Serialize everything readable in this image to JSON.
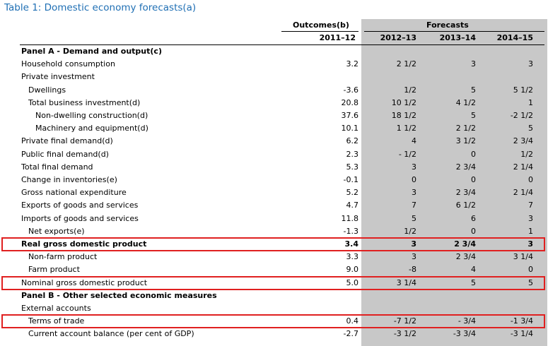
{
  "title": "Table 1: Domestic economy forecasts(a)",
  "header": {
    "outcomes": "Outcomes(b)",
    "forecasts": "Forecasts",
    "years": [
      "2011–12",
      "2012–13",
      "2013–14",
      "2014–15"
    ]
  },
  "rows": [
    {
      "label": "Panel A - Demand and output(c)",
      "indent": 0,
      "bold": true,
      "values": [
        "",
        "",
        "",
        ""
      ]
    },
    {
      "label": "Household consumption",
      "indent": 0,
      "values": [
        "3.2",
        "2 1/2",
        "3",
        "3"
      ]
    },
    {
      "label": "Private investment",
      "indent": 0,
      "values": [
        "",
        "",
        "",
        ""
      ]
    },
    {
      "label": "Dwellings",
      "indent": 1,
      "values": [
        "-3.6",
        "1/2",
        "5",
        "5 1/2"
      ]
    },
    {
      "label": "Total business investment(d)",
      "indent": 1,
      "values": [
        "20.8",
        "10 1/2",
        "4 1/2",
        "1"
      ]
    },
    {
      "label": "Non-dwelling construction(d)",
      "indent": 2,
      "values": [
        "37.6",
        "18 1/2",
        "5",
        "-2 1/2"
      ]
    },
    {
      "label": "Machinery and equipment(d)",
      "indent": 2,
      "values": [
        "10.1",
        "1 1/2",
        "2 1/2",
        "5"
      ]
    },
    {
      "label": "Private final demand(d)",
      "indent": 0,
      "values": [
        "6.2",
        "4",
        "3 1/2",
        "2 3/4"
      ]
    },
    {
      "label": "Public final demand(d)",
      "indent": 0,
      "values": [
        "2.3",
        "- 1/2",
        "0",
        "1/2"
      ]
    },
    {
      "label": "Total final demand",
      "indent": 0,
      "values": [
        "5.3",
        "3",
        "2 3/4",
        "2 1/4"
      ]
    },
    {
      "label": "Change in inventories(e)",
      "indent": 0,
      "values": [
        "-0.1",
        "0",
        "0",
        "0"
      ]
    },
    {
      "label": "Gross national expenditure",
      "indent": 0,
      "values": [
        "5.2",
        "3",
        "2 3/4",
        "2 1/4"
      ]
    },
    {
      "label": "Exports of goods and services",
      "indent": 0,
      "values": [
        "4.7",
        "7",
        "6 1/2",
        "7"
      ]
    },
    {
      "label": "Imports of goods and services",
      "indent": 0,
      "values": [
        "11.8",
        "5",
        "6",
        "3"
      ]
    },
    {
      "label": "Net exports(e)",
      "indent": 1,
      "values": [
        "-1.3",
        "1/2",
        "0",
        "1"
      ]
    },
    {
      "label": "Real gross domestic product",
      "indent": 0,
      "bold": true,
      "highlight": true,
      "values": [
        "3.4",
        "3",
        "2 3/4",
        "3"
      ]
    },
    {
      "label": "Non-farm product",
      "indent": 1,
      "values": [
        "3.3",
        "3",
        "2 3/4",
        "3 1/4"
      ]
    },
    {
      "label": "Farm product",
      "indent": 1,
      "values": [
        "9.0",
        "-8",
        "4",
        "0"
      ]
    },
    {
      "label": "Nominal gross domestic product",
      "indent": 0,
      "highlight": true,
      "values": [
        "5.0",
        "3 1/4",
        "5",
        "5"
      ]
    },
    {
      "label": "Panel B - Other selected economic measures",
      "indent": 0,
      "bold": true,
      "values": [
        "",
        "",
        "",
        ""
      ]
    },
    {
      "label": "External accounts",
      "indent": 0,
      "values": [
        "",
        "",
        "",
        ""
      ]
    },
    {
      "label": "Terms of trade",
      "indent": 1,
      "highlight": true,
      "values": [
        "0.4",
        "-7 1/2",
        "- 3/4",
        "-1 3/4"
      ]
    },
    {
      "label": "Current account balance (per cent of GDP)",
      "indent": 1,
      "values": [
        "-2.7",
        "-3 1/2",
        "-3 3/4",
        "-3 1/4"
      ]
    }
  ],
  "colors": {
    "title": "#1f6fb4",
    "forecast_shade": "#c8c8c8",
    "highlight": "#e02020"
  }
}
